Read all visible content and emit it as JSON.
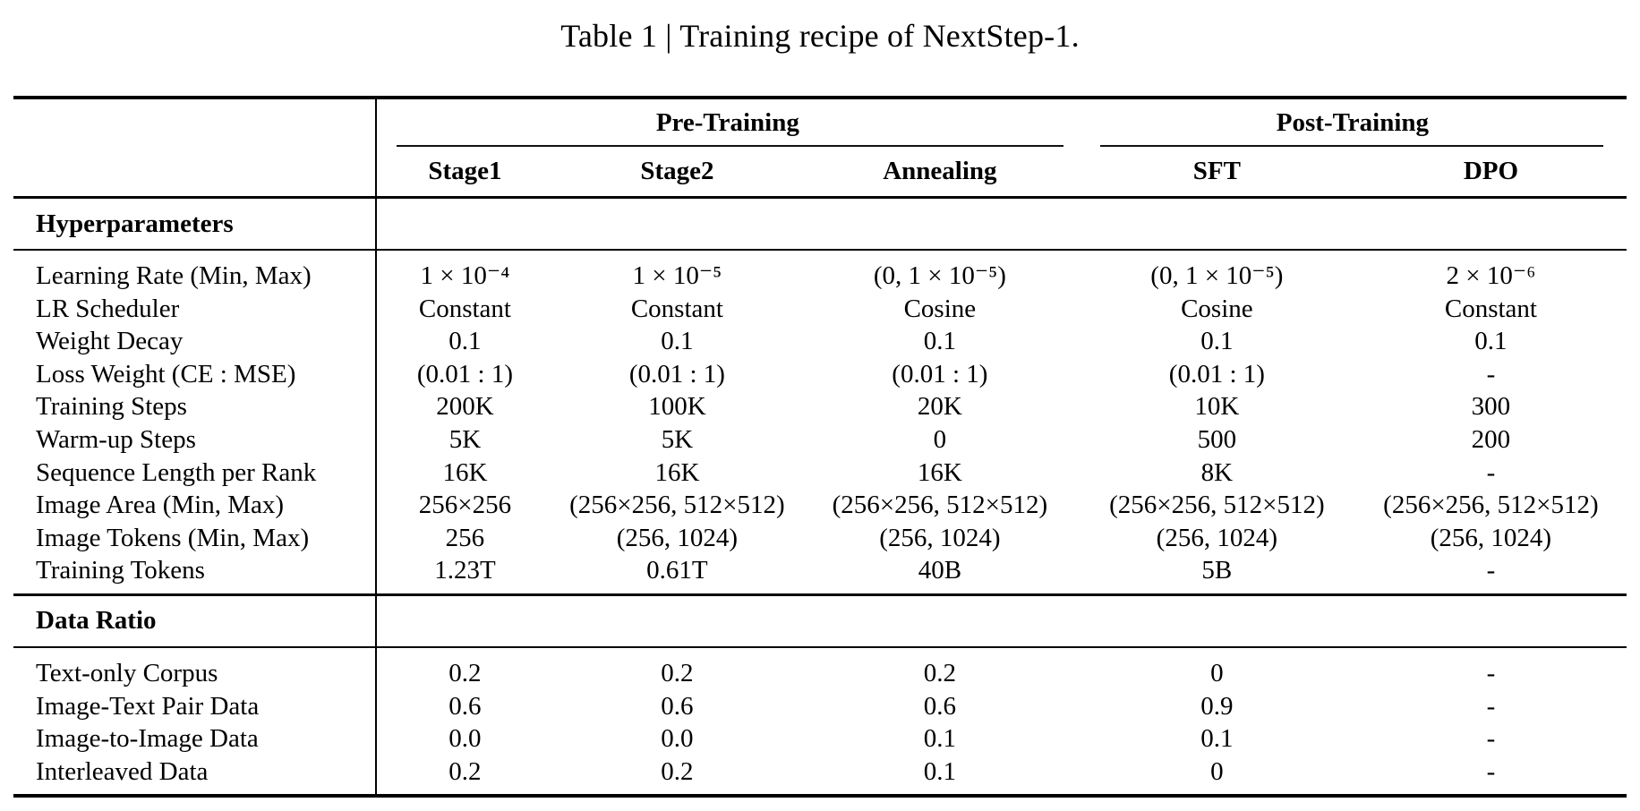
{
  "page": {
    "title": "Table 1 | Training recipe of NextStep-1."
  },
  "table": {
    "column_groups": [
      {
        "label": "Pre-Training",
        "span": 3
      },
      {
        "label": "Post-Training",
        "span": 2
      }
    ],
    "columns": [
      "Stage1",
      "Stage2",
      "Annealing",
      "SFT",
      "DPO"
    ],
    "sections": [
      {
        "name": "Hyperparameters",
        "rows": [
          {
            "label": "Learning Rate (Min, Max)",
            "values": [
              "1 × 10⁻⁴",
              "1 × 10⁻⁵",
              "(0, 1 × 10⁻⁵)",
              "(0, 1 × 10⁻⁵)",
              "2 × 10⁻⁶"
            ]
          },
          {
            "label": "LR Scheduler",
            "values": [
              "Constant",
              "Constant",
              "Cosine",
              "Cosine",
              "Constant"
            ]
          },
          {
            "label": "Weight Decay",
            "values": [
              "0.1",
              "0.1",
              "0.1",
              "0.1",
              "0.1"
            ]
          },
          {
            "label": "Loss Weight (CE : MSE)",
            "values": [
              "(0.01 : 1)",
              "(0.01 : 1)",
              "(0.01 : 1)",
              "(0.01 : 1)",
              "-"
            ]
          },
          {
            "label": "Training Steps",
            "values": [
              "200K",
              "100K",
              "20K",
              "10K",
              "300"
            ]
          },
          {
            "label": "Warm-up Steps",
            "values": [
              "5K",
              "5K",
              "0",
              "500",
              "200"
            ]
          },
          {
            "label": "Sequence Length per Rank",
            "values": [
              "16K",
              "16K",
              "16K",
              "8K",
              "-"
            ]
          },
          {
            "label": "Image Area (Min, Max)",
            "values": [
              "256×256",
              "(256×256, 512×512)",
              "(256×256, 512×512)",
              "(256×256, 512×512)",
              "(256×256, 512×512)"
            ]
          },
          {
            "label": "Image Tokens (Min, Max)",
            "values": [
              "256",
              "(256, 1024)",
              "(256, 1024)",
              "(256, 1024)",
              "(256, 1024)"
            ]
          },
          {
            "label": "Training Tokens",
            "values": [
              "1.23T",
              "0.61T",
              "40B",
              "5B",
              "-"
            ]
          }
        ]
      },
      {
        "name": "Data Ratio",
        "rows": [
          {
            "label": "Text-only Corpus",
            "values": [
              "0.2",
              "0.2",
              "0.2",
              "0",
              "-"
            ]
          },
          {
            "label": "Image-Text Pair Data",
            "values": [
              "0.6",
              "0.6",
              "0.6",
              "0.9",
              "-"
            ]
          },
          {
            "label": "Image-to-Image Data",
            "values": [
              "0.0",
              "0.0",
              "0.1",
              "0.1",
              "-"
            ]
          },
          {
            "label": "Interleaved Data",
            "values": [
              "0.2",
              "0.2",
              "0.1",
              "0",
              "-"
            ]
          }
        ]
      }
    ]
  },
  "colors": {
    "text": "#000000",
    "background": "#ffffff",
    "rule": "#000000"
  }
}
